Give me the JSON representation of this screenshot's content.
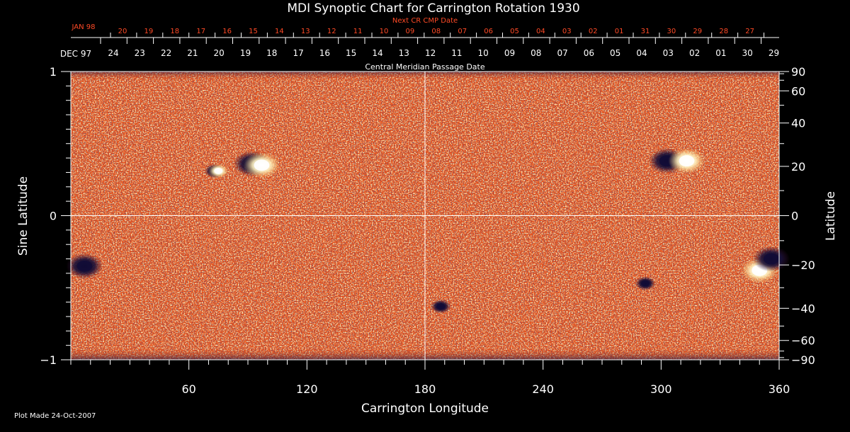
{
  "chart_data": {
    "type": "heatmap",
    "title": "MDI Synoptic Chart for Carrington Rotation 1930",
    "xlabel": "Carrington Longitude",
    "ylabel_left": "Sine Latitude",
    "ylabel_right": "Latitude",
    "xlim": [
      0,
      360
    ],
    "ylim": [
      -1,
      1
    ],
    "x_ticks": [
      60,
      120,
      180,
      240,
      300,
      360
    ],
    "y_ticks_left": [
      {
        "value": 1,
        "label": "1"
      },
      {
        "value": 0,
        "label": "0"
      },
      {
        "value": -1,
        "label": "−1"
      }
    ],
    "y_ticks_right": [
      {
        "lat": 90,
        "label": "90"
      },
      {
        "lat": 60,
        "label": "60"
      },
      {
        "lat": 40,
        "label": "40"
      },
      {
        "lat": 20,
        "label": "20"
      },
      {
        "lat": 0,
        "label": "0"
      },
      {
        "lat": -20,
        "label": "−20"
      },
      {
        "lat": -40,
        "label": "−40"
      },
      {
        "lat": -60,
        "label": "−60"
      },
      {
        "lat": -90,
        "label": "−90"
      }
    ],
    "top_axis": {
      "label": "Central Meridian Passage Date",
      "start_label": "DEC 97",
      "dates": [
        "24",
        "23",
        "22",
        "21",
        "20",
        "19",
        "18",
        "17",
        "16",
        "15",
        "14",
        "13",
        "12",
        "11",
        "10",
        "09",
        "08",
        "07",
        "06",
        "05",
        "04",
        "03",
        "02",
        "01",
        "30",
        "29"
      ]
    },
    "next_axis": {
      "label": "Next CR CMP Date",
      "start_label": "JAN 98",
      "dates": [
        "20",
        "19",
        "18",
        "17",
        "16",
        "15",
        "14",
        "13",
        "12",
        "11",
        "10",
        "09",
        "08",
        "07",
        "06",
        "05",
        "04",
        "03",
        "02",
        "01",
        "31",
        "30",
        "29",
        "28",
        "27"
      ]
    },
    "regions": [
      {
        "name": "spot-a-negative",
        "lon": 73,
        "sinlat": 0.31,
        "polarity": "negative"
      },
      {
        "name": "spot-a-positive",
        "lon": 75,
        "sinlat": 0.31,
        "polarity": "positive"
      },
      {
        "name": "region-b-negative",
        "lon": 92,
        "sinlat": 0.36,
        "polarity": "negative"
      },
      {
        "name": "region-b-positive",
        "lon": 97,
        "sinlat": 0.35,
        "polarity": "positive"
      },
      {
        "name": "region-c-negative",
        "lon": 303,
        "sinlat": 0.38,
        "polarity": "negative"
      },
      {
        "name": "region-c-positive",
        "lon": 313,
        "sinlat": 0.38,
        "polarity": "positive"
      },
      {
        "name": "region-d-positive",
        "lon": 350,
        "sinlat": -0.38,
        "polarity": "positive"
      },
      {
        "name": "region-d-negative",
        "lon": 356,
        "sinlat": -0.3,
        "polarity": "negative"
      },
      {
        "name": "region-e-negative",
        "lon": 7,
        "sinlat": -0.35,
        "polarity": "negative"
      },
      {
        "name": "spot-f-negative",
        "lon": 188,
        "sinlat": -0.63,
        "polarity": "negative"
      },
      {
        "name": "spot-g-negative",
        "lon": 292,
        "sinlat": -0.47,
        "polarity": "negative"
      }
    ],
    "footer": "Plot Made 24-Oct-2007"
  },
  "colors": {
    "background": "#000000",
    "field_base": "#e8531c",
    "positive": "#ffffff",
    "positive_mid": "#ffd070",
    "negative": "#120c38",
    "negative_mid": "#5a1a30",
    "accent_red": "#ff4a26",
    "axis": "#ffffff"
  }
}
